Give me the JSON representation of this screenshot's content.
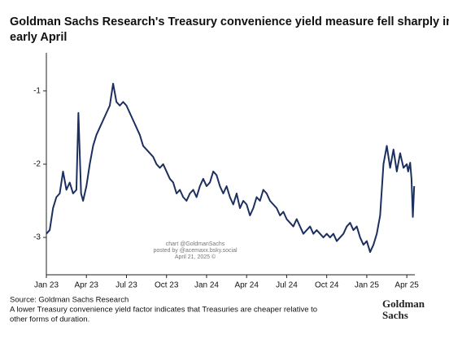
{
  "chart_data": {
    "type": "line",
    "title": "Goldman Sachs Research's Treasury convenience yield measure fell sharply in early April",
    "annotations": [
      "chart @GoldmanSachs",
      "posted by @acemaxx.bsky.social",
      "April 21, 2025 ©"
    ],
    "source": "Source: Goldman Sachs Research",
    "note": "A lower Treasury convenience yield factor indicates that Treasuries are cheaper relative to other forms of duration.",
    "logo": [
      "Goldman",
      "Sachs"
    ],
    "color": "#1c2f5e",
    "x": [
      0,
      0.25,
      0.5,
      0.75,
      1,
      1.25,
      1.5,
      1.75,
      2,
      2.25,
      2.4,
      2.6,
      2.75,
      3,
      3.25,
      3.5,
      3.75,
      4,
      4.25,
      4.5,
      4.75,
      5,
      5.25,
      5.5,
      5.75,
      6,
      6.25,
      6.5,
      6.75,
      7,
      7.25,
      7.5,
      7.75,
      8,
      8.25,
      8.5,
      8.75,
      9,
      9.25,
      9.5,
      9.75,
      10,
      10.25,
      10.5,
      10.75,
      11,
      11.25,
      11.5,
      11.75,
      12,
      12.25,
      12.5,
      12.75,
      13,
      13.25,
      13.5,
      13.75,
      14,
      14.25,
      14.5,
      14.75,
      15,
      15.25,
      15.5,
      15.75,
      16,
      16.25,
      16.5,
      16.75,
      17,
      17.25,
      17.5,
      17.75,
      18,
      18.25,
      18.5,
      18.75,
      19,
      19.25,
      19.5,
      19.75,
      20,
      20.25,
      20.5,
      20.75,
      21,
      21.25,
      21.5,
      21.75,
      22,
      22.25,
      22.5,
      22.75,
      23,
      23.25,
      23.5,
      23.75,
      24,
      24.25,
      24.5,
      24.75,
      25,
      25.25,
      25.5,
      25.75,
      26,
      26.25,
      26.5,
      26.75,
      27,
      27.1,
      27.25,
      27.35,
      27.45,
      27.55
    ],
    "values": [
      -2.95,
      -2.9,
      -2.6,
      -2.45,
      -2.4,
      -2.1,
      -2.35,
      -2.25,
      -2.4,
      -2.35,
      -1.3,
      -2.4,
      -2.5,
      -2.3,
      -2.0,
      -1.75,
      -1.6,
      -1.5,
      -1.4,
      -1.3,
      -1.2,
      -0.9,
      -1.15,
      -1.2,
      -1.15,
      -1.2,
      -1.3,
      -1.4,
      -1.5,
      -1.6,
      -1.75,
      -1.8,
      -1.85,
      -1.9,
      -2.0,
      -2.05,
      -2.0,
      -2.1,
      -2.2,
      -2.25,
      -2.4,
      -2.35,
      -2.45,
      -2.5,
      -2.4,
      -2.35,
      -2.45,
      -2.3,
      -2.2,
      -2.3,
      -2.25,
      -2.1,
      -2.15,
      -2.3,
      -2.4,
      -2.3,
      -2.45,
      -2.55,
      -2.4,
      -2.6,
      -2.5,
      -2.55,
      -2.7,
      -2.6,
      -2.45,
      -2.5,
      -2.35,
      -2.4,
      -2.5,
      -2.55,
      -2.6,
      -2.7,
      -2.65,
      -2.75,
      -2.8,
      -2.85,
      -2.75,
      -2.85,
      -2.95,
      -2.9,
      -2.85,
      -2.95,
      -2.9,
      -2.95,
      -3.0,
      -2.95,
      -3.0,
      -2.95,
      -3.05,
      -3.0,
      -2.95,
      -2.85,
      -2.8,
      -2.9,
      -2.85,
      -3.0,
      -3.1,
      -3.05,
      -3.2,
      -3.1,
      -2.95,
      -2.7,
      -2.0,
      -1.75,
      -2.05,
      -1.8,
      -2.1,
      -1.85,
      -2.05,
      -2.0,
      -2.1,
      -1.98,
      -2.2,
      -2.72,
      -2.3
    ],
    "xlim": [
      0,
      27.6
    ],
    "xticks": [
      {
        "value": 0,
        "label": "Jan 23"
      },
      {
        "value": 3,
        "label": "Apr 23"
      },
      {
        "value": 6,
        "label": "Jul 23"
      },
      {
        "value": 9,
        "label": "Oct 23"
      },
      {
        "value": 12,
        "label": "Jan 24"
      },
      {
        "value": 15,
        "label": "Apr 24"
      },
      {
        "value": 18,
        "label": "Jul 24"
      },
      {
        "value": 21,
        "label": "Oct 24"
      },
      {
        "value": 24,
        "label": "Jan 25"
      },
      {
        "value": 27,
        "label": "Apr 25"
      }
    ],
    "ylim": [
      -3.51,
      -0.48
    ],
    "yticks": [
      -3,
      -2,
      -1
    ]
  }
}
